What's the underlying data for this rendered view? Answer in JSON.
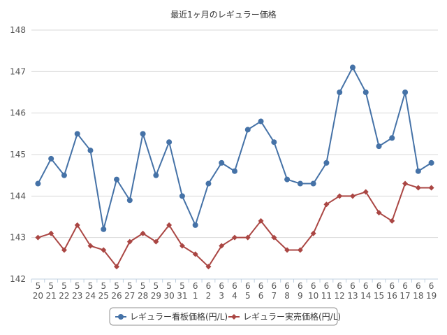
{
  "chart_data": {
    "type": "line",
    "title": "最近1ヶ月のレギュラー価格",
    "xlabel": "",
    "ylabel": "",
    "ylim": [
      142,
      148
    ],
    "yticks": [
      142,
      143,
      144,
      145,
      146,
      147,
      148
    ],
    "grid": true,
    "legend_position": "bottom-center",
    "categories": [
      {
        "month": "5",
        "day": "20"
      },
      {
        "month": "5",
        "day": "21"
      },
      {
        "month": "5",
        "day": "22"
      },
      {
        "month": "5",
        "day": "23"
      },
      {
        "month": "5",
        "day": "24"
      },
      {
        "month": "5",
        "day": "25"
      },
      {
        "month": "5",
        "day": "26"
      },
      {
        "month": "5",
        "day": "27"
      },
      {
        "month": "5",
        "day": "28"
      },
      {
        "month": "5",
        "day": "29"
      },
      {
        "month": "5",
        "day": "30"
      },
      {
        "month": "5",
        "day": "31"
      },
      {
        "month": "6",
        "day": "1"
      },
      {
        "month": "6",
        "day": "2"
      },
      {
        "month": "6",
        "day": "3"
      },
      {
        "month": "6",
        "day": "4"
      },
      {
        "month": "6",
        "day": "5"
      },
      {
        "month": "6",
        "day": "6"
      },
      {
        "month": "6",
        "day": "7"
      },
      {
        "month": "6",
        "day": "8"
      },
      {
        "month": "6",
        "day": "9"
      },
      {
        "month": "6",
        "day": "10"
      },
      {
        "month": "6",
        "day": "11"
      },
      {
        "month": "6",
        "day": "12"
      },
      {
        "month": "6",
        "day": "13"
      },
      {
        "month": "6",
        "day": "14"
      },
      {
        "month": "6",
        "day": "15"
      },
      {
        "month": "6",
        "day": "16"
      },
      {
        "month": "6",
        "day": "17"
      },
      {
        "month": "6",
        "day": "18"
      },
      {
        "month": "6",
        "day": "19"
      }
    ],
    "series": [
      {
        "name": "レギュラー看板価格(円/L)",
        "color": "#4572a7",
        "marker": "circle",
        "values": [
          144.3,
          144.9,
          144.5,
          145.5,
          145.1,
          143.2,
          144.4,
          143.9,
          145.5,
          144.5,
          145.3,
          144.0,
          143.3,
          144.3,
          144.8,
          144.6,
          145.6,
          145.8,
          145.3,
          144.4,
          144.3,
          144.3,
          144.8,
          146.5,
          147.1,
          146.5,
          145.2,
          145.4,
          146.5,
          144.6,
          144.8
        ]
      },
      {
        "name": "レギュラー実売価格(円/L)",
        "color": "#aa4643",
        "marker": "diamond",
        "values": [
          143.0,
          143.1,
          142.7,
          143.3,
          142.8,
          142.7,
          142.3,
          142.9,
          143.1,
          142.9,
          143.3,
          142.8,
          142.6,
          142.3,
          142.8,
          143.0,
          143.0,
          143.4,
          143.0,
          142.7,
          142.7,
          143.1,
          143.8,
          144.0,
          144.0,
          144.1,
          143.6,
          143.4,
          144.3,
          144.2,
          144.2
        ]
      }
    ]
  }
}
